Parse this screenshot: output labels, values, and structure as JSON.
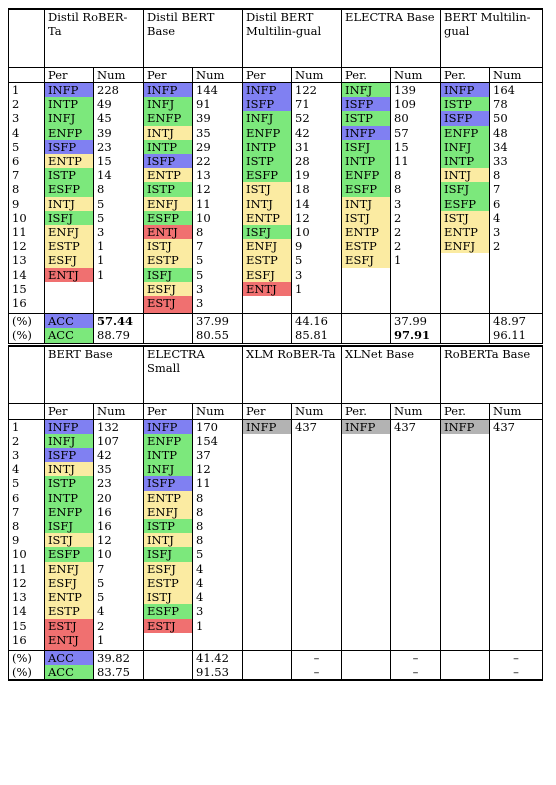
{
  "colors": {
    "blue": "#8080f2",
    "green": "#7ce87c",
    "yellow": "#fbeba2",
    "red": "#f07070",
    "gray": "#b3b3b3"
  },
  "tables": [
    {
      "models": [
        {
          "name": "Distil RoBER-Ta",
          "per_header": "Per",
          "num_header": "Num",
          "rows": [
            [
              "INFP",
              "228",
              "blue"
            ],
            [
              "INTP",
              "49",
              "green"
            ],
            [
              "INFJ",
              "45",
              "green"
            ],
            [
              "ENFP",
              "39",
              "green"
            ],
            [
              "ISFP",
              "23",
              "blue"
            ],
            [
              "ENTP",
              "15",
              "yellow"
            ],
            [
              "ISTP",
              "14",
              "green"
            ],
            [
              "ESFP",
              "8",
              "green"
            ],
            [
              "INTJ",
              "5",
              "yellow"
            ],
            [
              "ISFJ",
              "5",
              "green"
            ],
            [
              "ENFJ",
              "3",
              "yellow"
            ],
            [
              "ESTP",
              "1",
              "yellow"
            ],
            [
              "ESFJ",
              "1",
              "yellow"
            ],
            [
              "ENTJ",
              "1",
              "red"
            ]
          ],
          "acc1": "57.44",
          "acc2": "88.79",
          "acc1_label": "ACC",
          "acc2_label": "ACC",
          "acc1_bold": true,
          "acc2_bold": false
        },
        {
          "name": "Distil BERT Base",
          "per_header": "Per",
          "num_header": "Num",
          "rows": [
            [
              "INFP",
              "144",
              "blue"
            ],
            [
              "INFJ",
              "91",
              "green"
            ],
            [
              "ENFP",
              "39",
              "green"
            ],
            [
              "INTJ",
              "35",
              "yellow"
            ],
            [
              "INTP",
              "29",
              "green"
            ],
            [
              "ISFP",
              "22",
              "blue"
            ],
            [
              "ENTP",
              "13",
              "yellow"
            ],
            [
              "ISTP",
              "12",
              "green"
            ],
            [
              "ENFJ",
              "11",
              "yellow"
            ],
            [
              "ESFP",
              "10",
              "green"
            ],
            [
              "ENTJ",
              "8",
              "red"
            ],
            [
              "ISTJ",
              "7",
              "yellow"
            ],
            [
              "ESTP",
              "5",
              "yellow"
            ],
            [
              "ISFJ",
              "5",
              "green"
            ],
            [
              "ESFJ",
              "3",
              "yellow"
            ],
            [
              "ESTJ",
              "3",
              "red"
            ]
          ],
          "acc1": "37.99",
          "acc2": "80.55",
          "acc1_bold": false,
          "acc2_bold": false
        },
        {
          "name": "Distil BERT Multilin-gual",
          "per_header": "Per",
          "num_header": "Num",
          "rows": [
            [
              "INFP",
              "122",
              "blue"
            ],
            [
              "ISFP",
              "71",
              "blue"
            ],
            [
              "INFJ",
              "52",
              "green"
            ],
            [
              "ENFP",
              "42",
              "green"
            ],
            [
              "INTP",
              "31",
              "green"
            ],
            [
              "ISTP",
              "28",
              "green"
            ],
            [
              "ESFP",
              "19",
              "green"
            ],
            [
              "ISTJ",
              "18",
              "yellow"
            ],
            [
              "INTJ",
              "14",
              "yellow"
            ],
            [
              "ENTP",
              "12",
              "yellow"
            ],
            [
              "ISFJ",
              "10",
              "green"
            ],
            [
              "ENFJ",
              "9",
              "yellow"
            ],
            [
              "ESTP",
              "5",
              "yellow"
            ],
            [
              "ESFJ",
              "3",
              "yellow"
            ],
            [
              "ENTJ",
              "1",
              "red"
            ]
          ],
          "acc1": "44.16",
          "acc2": "85.81",
          "acc1_bold": false,
          "acc2_bold": false
        },
        {
          "name": "ELECTRA Base",
          "per_header": "Per.",
          "num_header": "Num",
          "rows": [
            [
              "INFJ",
              "139",
              "green"
            ],
            [
              "ISFP",
              "109",
              "blue"
            ],
            [
              "ISTP",
              "80",
              "green"
            ],
            [
              "INFP",
              "57",
              "blue"
            ],
            [
              "ISFJ",
              "15",
              "green"
            ],
            [
              "INTP",
              "11",
              "green"
            ],
            [
              "ENFP",
              "8",
              "green"
            ],
            [
              "ESFP",
              "8",
              "green"
            ],
            [
              "INTJ",
              "3",
              "yellow"
            ],
            [
              "ISTJ",
              "2",
              "yellow"
            ],
            [
              "ENTP",
              "2",
              "yellow"
            ],
            [
              "ESTP",
              "2",
              "yellow"
            ],
            [
              "ESFJ",
              "1",
              "yellow"
            ]
          ],
          "acc1": "37.99",
          "acc2": "97.91",
          "acc1_bold": false,
          "acc2_bold": true
        },
        {
          "name": "BERT Multilin-gual",
          "per_header": "Per.",
          "num_header": "Num",
          "rows": [
            [
              "INFP",
              "164",
              "blue"
            ],
            [
              "ISTP",
              "78",
              "green"
            ],
            [
              "ISFP",
              "50",
              "blue"
            ],
            [
              "ENFP",
              "48",
              "green"
            ],
            [
              "INFJ",
              "34",
              "green"
            ],
            [
              "INTP",
              "33",
              "green"
            ],
            [
              "INTJ",
              "8",
              "yellow"
            ],
            [
              "ISFJ",
              "7",
              "green"
            ],
            [
              "ESFP",
              "6",
              "green"
            ],
            [
              "ISTJ",
              "4",
              "yellow"
            ],
            [
              "ENTP",
              "3",
              "yellow"
            ],
            [
              "ENFJ",
              "2",
              "yellow"
            ]
          ],
          "acc1": "48.97",
          "acc2": "96.11",
          "acc1_bold": false,
          "acc2_bold": false
        }
      ]
    },
    {
      "models": [
        {
          "name": "BERT Base",
          "per_header": "Per",
          "num_header": "Num",
          "rows": [
            [
              "INFP",
              "132",
              "blue"
            ],
            [
              "INFJ",
              "107",
              "green"
            ],
            [
              "ISFP",
              "42",
              "blue"
            ],
            [
              "INTJ",
              "35",
              "yellow"
            ],
            [
              "ISTP",
              "23",
              "green"
            ],
            [
              "INTP",
              "20",
              "green"
            ],
            [
              "ENFP",
              "16",
              "green"
            ],
            [
              "ISFJ",
              "16",
              "green"
            ],
            [
              "ISTJ",
              "12",
              "yellow"
            ],
            [
              "ESFP",
              "10",
              "green"
            ],
            [
              "ENFJ",
              "7",
              "yellow"
            ],
            [
              "ESFJ",
              "5",
              "yellow"
            ],
            [
              "ENTP",
              "5",
              "yellow"
            ],
            [
              "ESTP",
              "4",
              "yellow"
            ],
            [
              "ESTJ",
              "2",
              "red"
            ],
            [
              "ENTJ",
              "1",
              "red"
            ]
          ],
          "acc1": "39.82",
          "acc2": "83.75",
          "acc1_label": "ACC",
          "acc2_label": "ACC",
          "acc1_bold": false,
          "acc2_bold": false
        },
        {
          "name": "ELECTRA Small",
          "per_header": "Per",
          "num_header": "Num",
          "rows": [
            [
              "INFP",
              "170",
              "blue"
            ],
            [
              "ENFP",
              "154",
              "green"
            ],
            [
              "INTP",
              "37",
              "green"
            ],
            [
              "INFJ",
              "12",
              "green"
            ],
            [
              "ISFP",
              "11",
              "blue"
            ],
            [
              "ENTP",
              "8",
              "yellow"
            ],
            [
              "ENFJ",
              "8",
              "yellow"
            ],
            [
              "ISTP",
              "8",
              "green"
            ],
            [
              "INTJ",
              "8",
              "yellow"
            ],
            [
              "ISFJ",
              "5",
              "green"
            ],
            [
              "ESFJ",
              "4",
              "yellow"
            ],
            [
              "ESTP",
              "4",
              "yellow"
            ],
            [
              "ISTJ",
              "4",
              "yellow"
            ],
            [
              "ESFP",
              "3",
              "green"
            ],
            [
              "ESTJ",
              "1",
              "red"
            ]
          ],
          "acc1": "41.42",
          "acc2": "91.53",
          "acc1_bold": false,
          "acc2_bold": false
        },
        {
          "name": "XLM RoBER-Ta",
          "per_header": "Per",
          "num_header": "Num",
          "rows": [
            [
              "INFP",
              "437",
              "gray"
            ]
          ],
          "acc1": "–",
          "acc2": "–",
          "acc1_bold": false,
          "acc2_bold": false
        },
        {
          "name": "XLNet Base",
          "per_header": "Per.",
          "num_header": "Num",
          "rows": [
            [
              "INFP",
              "437",
              "gray"
            ]
          ],
          "acc1": "–",
          "acc2": "–",
          "acc1_bold": false,
          "acc2_bold": false
        },
        {
          "name": "RoBERTa Base",
          "per_header": "Per.",
          "num_header": "Num",
          "rows": [
            [
              "INFP",
              "437",
              "gray"
            ]
          ],
          "acc1": "–",
          "acc2": "–",
          "acc1_bold": false,
          "acc2_bold": false
        }
      ]
    }
  ],
  "row_numbers": [
    "1",
    "2",
    "3",
    "4",
    "5",
    "6",
    "7",
    "8",
    "9",
    "10",
    "11",
    "12",
    "13",
    "14",
    "15",
    "16"
  ],
  "pct_label": "(%)"
}
